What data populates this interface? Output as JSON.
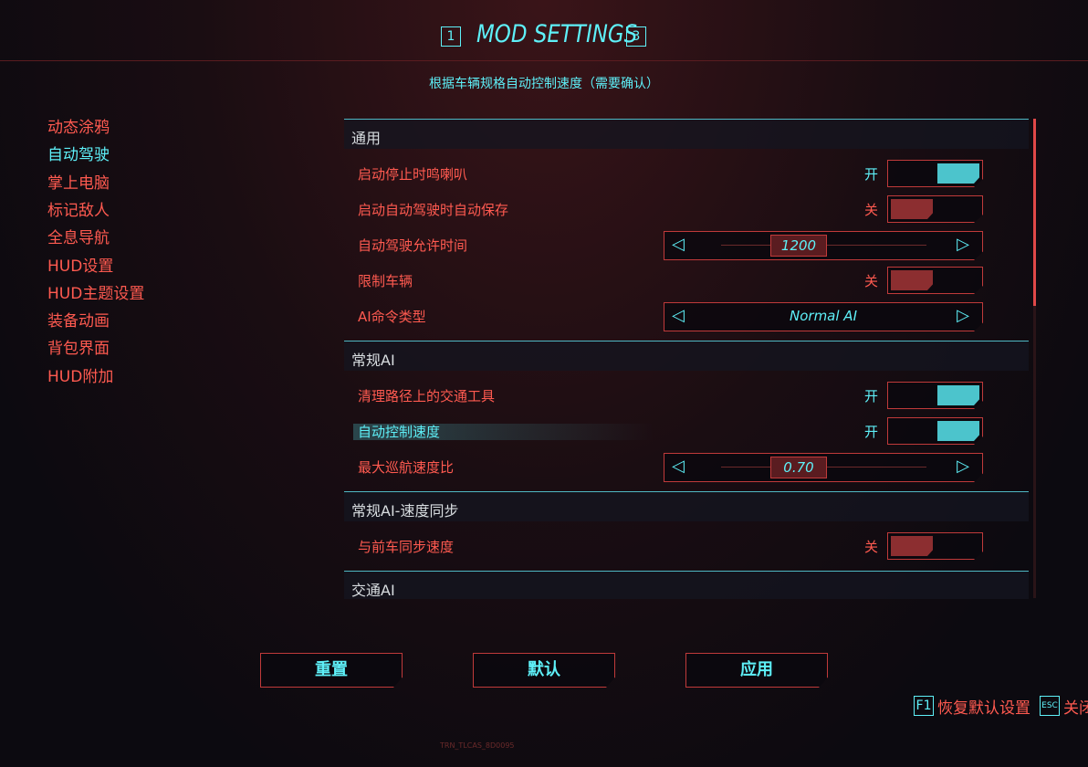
{
  "header": {
    "prev_key": "1",
    "title": "MOD SETTINGS",
    "next_key": "3"
  },
  "description": "根据车辆规格自动控制速度（需要确认）",
  "sidebar": {
    "active": 1,
    "items": [
      "动态涂鸦",
      "自动驾驶",
      "掌上电脑",
      "标记敌人",
      "全息导航",
      "HUD设置",
      "HUD主题设置",
      "装备动画",
      "背包界面",
      "HUD附加"
    ]
  },
  "sections": [
    {
      "title": "通用",
      "rows": [
        {
          "label": "启动停止时鸣喇叭",
          "kind": "toggle",
          "on": true,
          "state": "开"
        },
        {
          "label": "启动自动驾驶时自动保存",
          "kind": "toggle",
          "on": false,
          "state": "关"
        },
        {
          "label": "自动驾驶允许时间",
          "kind": "slider",
          "value": "1200"
        },
        {
          "label": "限制车辆",
          "kind": "toggle",
          "on": false,
          "state": "关"
        },
        {
          "label": "AI命令类型",
          "kind": "selector",
          "value": "Normal AI"
        }
      ]
    },
    {
      "title": "常规AI",
      "rows": [
        {
          "label": "清理路径上的交通工具",
          "kind": "toggle",
          "on": true,
          "state": "开"
        },
        {
          "label": "自动控制速度",
          "kind": "toggle",
          "on": true,
          "state": "开",
          "hovered": true
        },
        {
          "label": "最大巡航速度比",
          "kind": "slider",
          "value": "0.70"
        }
      ]
    },
    {
      "title": "常规AI-速度同步",
      "rows": [
        {
          "label": "与前车同步速度",
          "kind": "toggle",
          "on": false,
          "state": "关"
        }
      ]
    },
    {
      "title": "交通AI",
      "rows": []
    }
  ],
  "buttons": [
    "重置",
    "默认",
    "应用"
  ],
  "hints": [
    {
      "key": "F1",
      "label": "恢复默认设置"
    },
    {
      "key": "ESC",
      "label": "关闭"
    }
  ],
  "footer_code": "TRN_TLCAS_8D0095"
}
